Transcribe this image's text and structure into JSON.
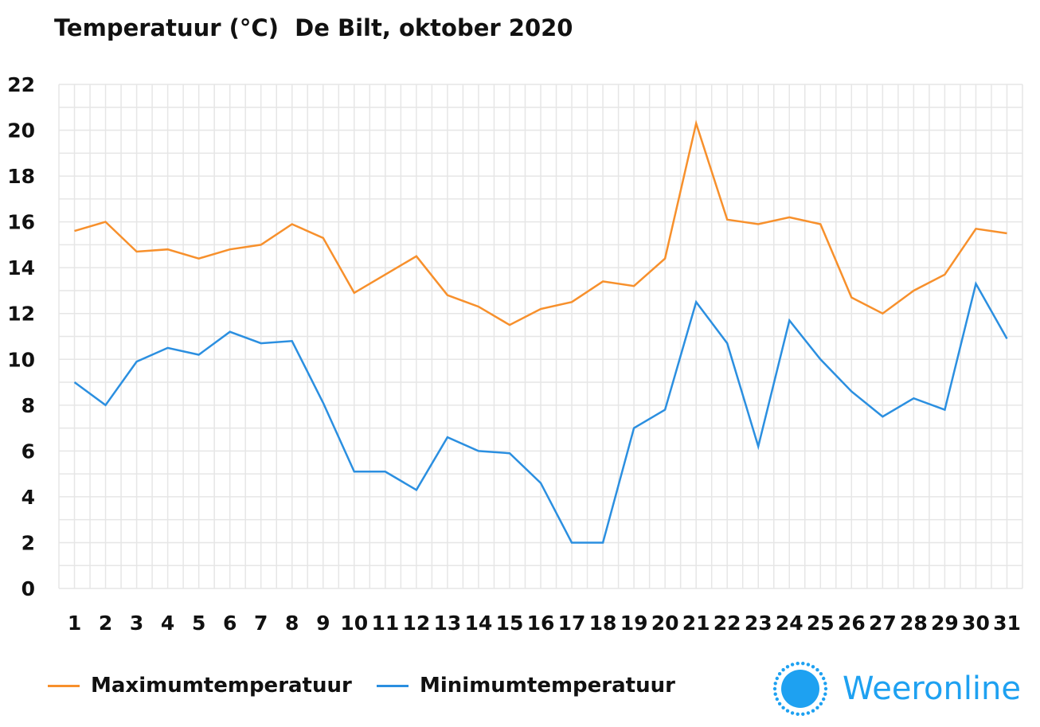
{
  "chart_data": {
    "type": "line",
    "title": "Temperatuur (°C)  De Bilt, oktober 2020",
    "xlabel": "",
    "ylabel": "",
    "ylim": [
      0,
      22
    ],
    "yticks": [
      0,
      2,
      4,
      6,
      8,
      10,
      12,
      14,
      16,
      18,
      20,
      22
    ],
    "categories": [
      "1",
      "2",
      "3",
      "4",
      "5",
      "6",
      "7",
      "8",
      "9",
      "10",
      "11",
      "12",
      "13",
      "14",
      "15",
      "16",
      "17",
      "18",
      "19",
      "20",
      "21",
      "22",
      "23",
      "24",
      "25",
      "26",
      "27",
      "28",
      "29",
      "30",
      "31"
    ],
    "grid": true,
    "legend_position": "bottom-left",
    "series": [
      {
        "name": "Maximumtemperatuur",
        "color": "#f7902c",
        "values": [
          15.6,
          16.0,
          14.7,
          14.8,
          14.4,
          14.8,
          15.0,
          15.9,
          15.3,
          12.9,
          13.7,
          14.5,
          12.8,
          12.3,
          11.5,
          12.2,
          12.5,
          13.4,
          13.2,
          14.4,
          20.3,
          16.1,
          15.9,
          16.2,
          15.9,
          12.7,
          12.0,
          13.0,
          13.7,
          15.7,
          15.5
        ]
      },
      {
        "name": "Minimumtemperatuur",
        "color": "#2b8fe0",
        "values": [
          9.0,
          8.0,
          9.9,
          10.5,
          10.2,
          11.2,
          10.7,
          10.8,
          8.1,
          5.1,
          5.1,
          4.3,
          6.6,
          6.0,
          5.9,
          4.6,
          2.0,
          2.0,
          7.0,
          7.8,
          12.5,
          10.7,
          6.2,
          11.7,
          10.0,
          8.6,
          7.5,
          8.3,
          7.8,
          13.3,
          10.9
        ]
      }
    ]
  },
  "logo": {
    "text": "Weeronline",
    "icon": "sun-icon",
    "color": "#1ea1f1"
  }
}
